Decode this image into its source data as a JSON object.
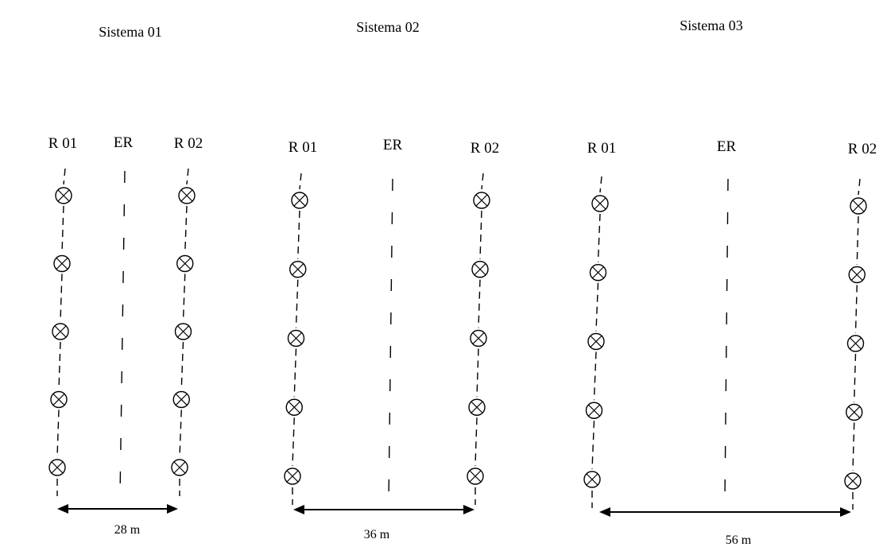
{
  "systems": [
    {
      "title": "Sistema 01",
      "r1": "R 01",
      "er": "ER",
      "r2": "R 02",
      "distance": "28 m"
    },
    {
      "title": "Sistema 02",
      "r1": "R 01",
      "er": "ER",
      "r2": "R 02",
      "distance": "36 m"
    },
    {
      "title": "Sistema 03",
      "r1": "R 01",
      "er": "ER",
      "r2": "R 02",
      "distance": "56 m"
    }
  ],
  "plants_per_row": 5,
  "plant_icon": "circled-x-icon"
}
